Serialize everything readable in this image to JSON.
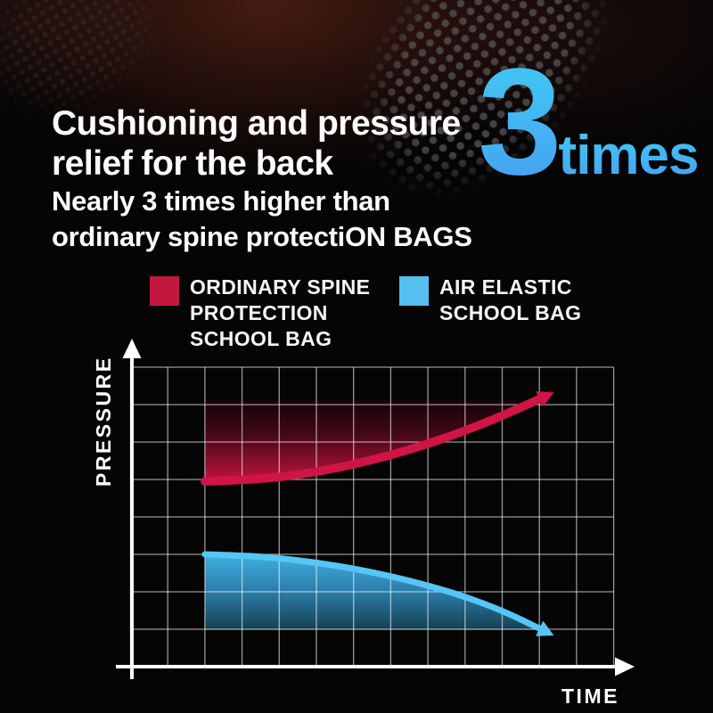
{
  "palette": {
    "blue_top": "#40cbf4",
    "blue_bottom": "#469ff3",
    "accent_red": "#c6143f",
    "accent_blue": "#55c0ef",
    "grid_white": "#ffffff",
    "background": "#050505"
  },
  "header": {
    "title_line1": "Cushioning and pressure",
    "title_line2": "relief for the back",
    "highlight_number": "3",
    "highlight_unit": "times",
    "subtitle_line1": "Nearly 3 times higher than",
    "subtitle_line2": "ordinary spine protectiON BAGS"
  },
  "legend": {
    "items": [
      {
        "color": "#c2183e",
        "lines": [
          "ORDINARY SPINE",
          "PROTECTION",
          "SCHOOL BAG"
        ]
      },
      {
        "color": "#55c0ef",
        "lines": [
          "AIR ELASTIC",
          "SCHOOL BAG"
        ]
      }
    ]
  },
  "chart_data": {
    "type": "line",
    "title": "",
    "xlabel": "TIME",
    "ylabel": "PRESSURE",
    "grid": {
      "on": true,
      "cols": 13,
      "rows": 8
    },
    "axis_range": {
      "x": [
        0,
        13
      ],
      "y": [
        0,
        8
      ]
    },
    "legend_position": "top",
    "annotations": "curves drawn as filled swoosh bands with arrowheads; no numeric tick labels shown",
    "series": [
      {
        "name": "ORDINARY SPINE PROTECTION SCHOOL BAG",
        "color": "#d01446",
        "trend": "rising",
        "x": [
          2,
          3,
          4,
          5,
          6,
          7,
          8,
          9,
          10,
          11
        ],
        "y": [
          4.95,
          4.98,
          5.06,
          5.2,
          5.4,
          5.65,
          5.95,
          6.3,
          6.7,
          7.15
        ],
        "band_top_y": 7.15
      },
      {
        "name": "AIR ELASTIC SCHOOL BAG",
        "color": "#55c6f6",
        "trend": "falling",
        "x": [
          2,
          3,
          4,
          5,
          6,
          7,
          8,
          9,
          10,
          11
        ],
        "y": [
          3.0,
          2.97,
          2.9,
          2.78,
          2.62,
          2.42,
          2.17,
          1.87,
          1.5,
          1.02
        ],
        "band_bottom_y": 0.98
      }
    ]
  }
}
